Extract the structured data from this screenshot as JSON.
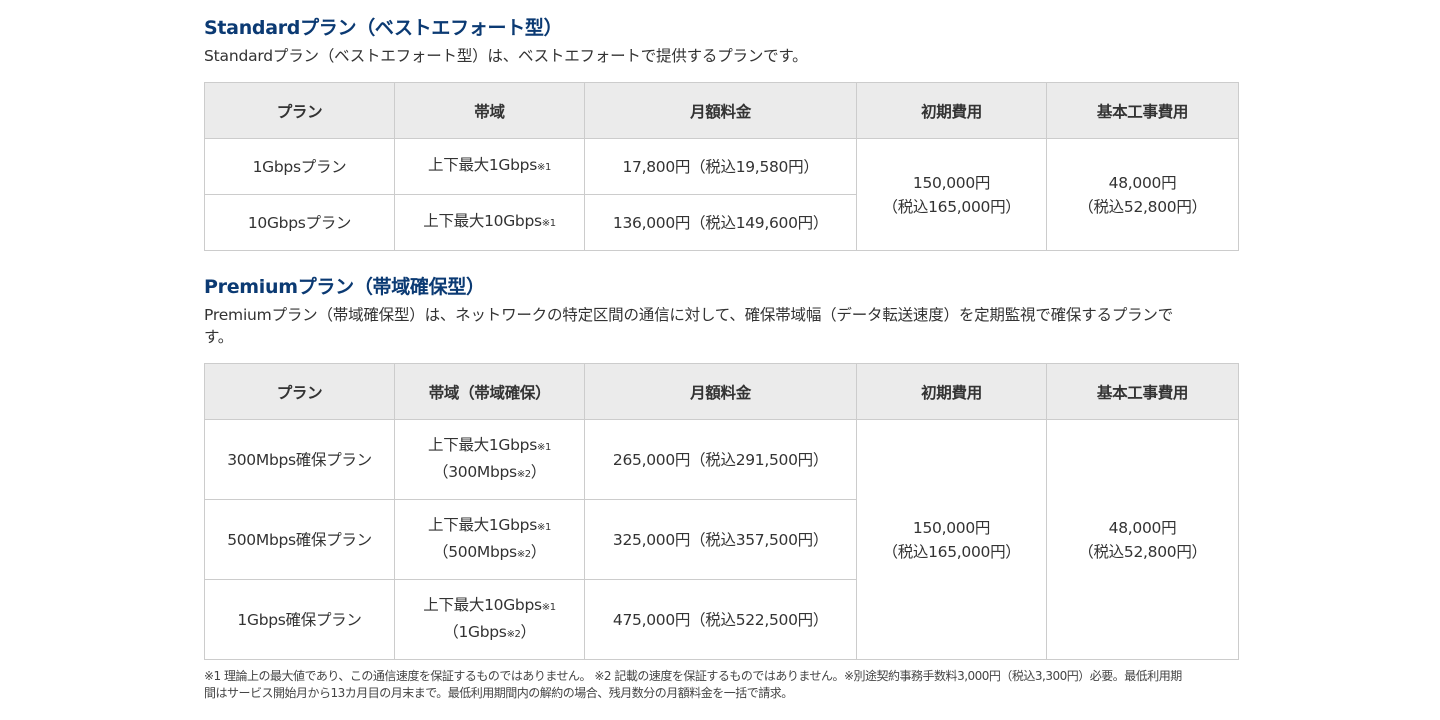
{
  "standard": {
    "title": "Standardプラン（ベストエフォート型）",
    "description": "Standardプラン（ベストエフォート型）は、ベストエフォートで提供するプランです。",
    "headers": [
      "プラン",
      "帯域",
      "月額料金",
      "初期費用",
      "基本工事費用"
    ],
    "rows": [
      {
        "plan": "1Gbpsプラン",
        "bandwidth": "上下最大1Gbps",
        "note": "※1",
        "monthly": "17,800円（税込19,580円）"
      },
      {
        "plan": "10Gbpsプラン",
        "bandwidth": "上下最大10Gbps",
        "note": "※1",
        "monthly": "136,000円（税込149,600円）"
      }
    ],
    "initial_fee": "150,000円",
    "initial_fee_tax": "（税込165,000円）",
    "construction_fee": "48,000円",
    "construction_fee_tax": "（税込52,800円）"
  },
  "premium": {
    "title": "Premiumプラン（帯域確保型）",
    "description_line1": "Premiumプラン（帯域確保型）は、ネットワークの特定区間の通信に対して、確保帯域幅（データ転送速度）を定期監視で確保するプランで",
    "description_line2": "す。",
    "headers": [
      "プラン",
      "帯域（帯域確保）",
      "月額料金",
      "初期費用",
      "基本工事費用"
    ],
    "rows": [
      {
        "plan": "300Mbps確保プラン",
        "bandwidth": "上下最大1Gbps",
        "note1": "※1",
        "guaranteed": "（300Mbps",
        "note2": "※2",
        "close": "）",
        "monthly": "265,000円（税込291,500円）"
      },
      {
        "plan": "500Mbps確保プラン",
        "bandwidth": "上下最大1Gbps",
        "note1": "※1",
        "guaranteed": "（500Mbps",
        "note2": "※2",
        "close": "）",
        "monthly": "325,000円（税込357,500円）"
      },
      {
        "plan": "1Gbps確保プラン",
        "bandwidth": "上下最大10Gbps",
        "note1": "※1",
        "guaranteed": "（1Gbps",
        "note2": "※2",
        "close": "）",
        "monthly": "475,000円（税込522,500円）"
      }
    ],
    "initial_fee": "150,000円",
    "initial_fee_tax": "（税込165,000円）",
    "construction_fee": "48,000円",
    "construction_fee_tax": "（税込52,800円）"
  },
  "footnote_line1": "※1 理論上の最大値であり、この通信速度を保証するものではありません。 ※2 記載の速度を保証するものではありません。※別途契約事務手数料3,000円（税込3,300円）必要。最低利用期",
  "footnote_line2": "間はサービス開始月から13カ月目の月末まで。最低利用期間内の解約の場合、残月数分の月額料金を一括で請求。"
}
